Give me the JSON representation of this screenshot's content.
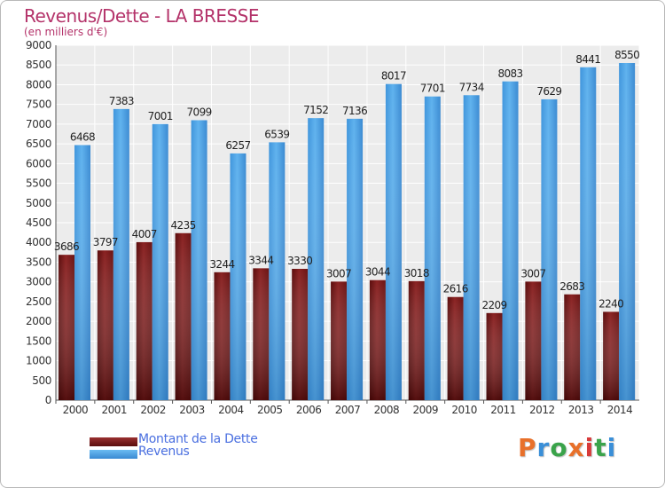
{
  "title": "Revenus/Dette - LA BRESSE",
  "subtitle": "(en milliers d'€)",
  "legend": [
    {
      "label": "Montant de la Dette",
      "color": "#7a1a1a"
    },
    {
      "label": "Revenus",
      "color": "#4a9fe0"
    }
  ],
  "logo": {
    "text": "Proxiti",
    "colors": [
      "#e8702a",
      "#3a8fd8",
      "#3aa34a",
      "#e8702a",
      "#d83a3a",
      "#3aa34a",
      "#3a8fd8"
    ]
  },
  "chart_data": {
    "type": "bar",
    "categories": [
      "2000",
      "2001",
      "2002",
      "2003",
      "2004",
      "2005",
      "2006",
      "2007",
      "2008",
      "2009",
      "2010",
      "2011",
      "2012",
      "2013",
      "2014"
    ],
    "series": [
      {
        "name": "Montant de la Dette",
        "values": [
          3686,
          3797,
          4007,
          4235,
          3244,
          3344,
          3330,
          3007,
          3044,
          3018,
          2616,
          2209,
          3007,
          2683,
          2240
        ],
        "color": "#7a1a1a"
      },
      {
        "name": "Revenus",
        "values": [
          6468,
          7383,
          7001,
          7099,
          6257,
          6539,
          7152,
          7136,
          8017,
          7701,
          7734,
          8083,
          7629,
          8441,
          8550
        ],
        "color": "#4a9fe0"
      }
    ],
    "ylim": [
      0,
      9000
    ],
    "ytick_step": 500,
    "grid": true
  }
}
